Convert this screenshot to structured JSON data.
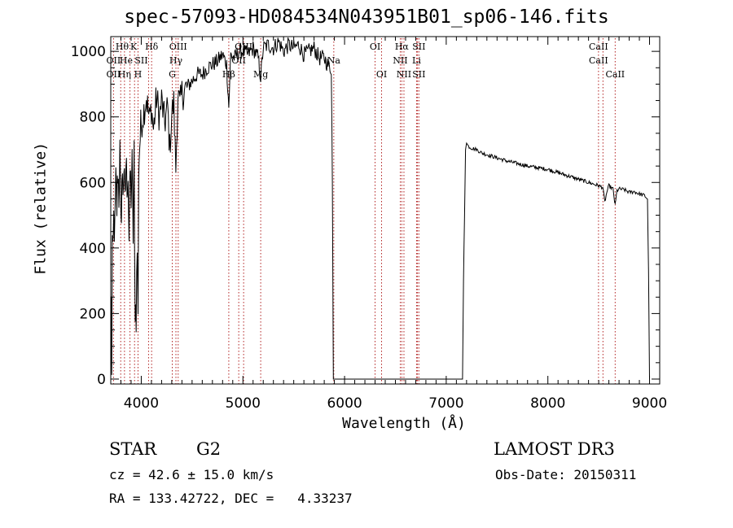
{
  "chart_data": {
    "type": "line",
    "title": "spec-57093-HD084534N043951B01_sp06-146.fits",
    "xlabel": "Wavelength (Å)",
    "ylabel": "Flux (relative)",
    "xlim": [
      3700,
      9100
    ],
    "ylim": [
      -15,
      1045
    ],
    "xticks": [
      4000,
      5000,
      6000,
      7000,
      8000,
      9000
    ],
    "yticks": [
      0,
      200,
      400,
      600,
      800,
      1000
    ],
    "grid": false,
    "series": [
      {
        "name": "spectrum",
        "x": [
          3700,
          3705,
          3710,
          3715,
          3720,
          3730,
          3740,
          3750,
          3760,
          3770,
          3780,
          3790,
          3800,
          3810,
          3820,
          3830,
          3840,
          3850,
          3860,
          3870,
          3880,
          3890,
          3900,
          3910,
          3920,
          3930,
          3934,
          3940,
          3950,
          3960,
          3968,
          3975,
          3985,
          4000,
          4020,
          4050,
          4080,
          4100,
          4120,
          4150,
          4180,
          4200,
          4230,
          4260,
          4280,
          4300,
          4320,
          4340,
          4360,
          4380,
          4400,
          4450,
          4500,
          4550,
          4600,
          4650,
          4700,
          4750,
          4800,
          4840,
          4861,
          4880,
          4920,
          4960,
          5000,
          5050,
          5100,
          5150,
          5175,
          5200,
          5250,
          5300,
          5350,
          5400,
          5450,
          5500,
          5550,
          5600,
          5650,
          5700,
          5750,
          5800,
          5850,
          5870,
          5880,
          5890,
          5900,
          7160,
          7170,
          7180,
          7190,
          7200,
          7220,
          7250,
          7300,
          7350,
          7400,
          7500,
          7600,
          7700,
          7800,
          7900,
          8000,
          8100,
          8200,
          8300,
          8400,
          8450,
          8500,
          8540,
          8560,
          8580,
          8600,
          8640,
          8662,
          8680,
          8700,
          8750,
          8800,
          8850,
          8900,
          8950,
          8980,
          8990,
          9000
        ],
        "values": [
          0,
          230,
          40,
          420,
          350,
          490,
          440,
          600,
          520,
          640,
          560,
          690,
          450,
          610,
          580,
          650,
          520,
          660,
          600,
          630,
          420,
          640,
          560,
          650,
          440,
          680,
          380,
          230,
          200,
          400,
          170,
          650,
          720,
          780,
          810,
          860,
          790,
          830,
          760,
          860,
          800,
          850,
          780,
          830,
          700,
          810,
          840,
          640,
          870,
          830,
          870,
          890,
          910,
          930,
          930,
          950,
          960,
          970,
          990,
          960,
          830,
          990,
          980,
          1000,
          1000,
          990,
          1010,
          980,
          920,
          1010,
          1020,
          1010,
          1030,
          1000,
          1020,
          1010,
          1020,
          990,
          1000,
          1010,
          980,
          980,
          950,
          950,
          600,
          0,
          0,
          0,
          300,
          500,
          700,
          720,
          710,
          705,
          700,
          690,
          685,
          675,
          665,
          658,
          650,
          645,
          640,
          630,
          620,
          610,
          600,
          595,
          590,
          585,
          540,
          570,
          590,
          580,
          530,
          575,
          580,
          578,
          570,
          572,
          565,
          560,
          550,
          330,
          0
        ]
      }
    ],
    "lines": [
      {
        "label": "OII",
        "x": 3727
      },
      {
        "label": "Hθ",
        "x": 3798
      },
      {
        "label": "Hη",
        "x": 3835
      },
      {
        "label": "HeI",
        "x": 3889
      },
      {
        "label": "K",
        "x": 3934
      },
      {
        "label": "H",
        "x": 3968
      },
      {
        "label": "SII",
        "x": 4072
      },
      {
        "label": "Hδ",
        "x": 4102
      },
      {
        "label": "G",
        "x": 4305
      },
      {
        "label": "Hγ",
        "x": 4341
      },
      {
        "label": "OIII",
        "x": 4363
      },
      {
        "label": "Hβ",
        "x": 4861
      },
      {
        "label": "OIII",
        "x": 4959
      },
      {
        "label": "OIII",
        "x": 5007
      },
      {
        "label": "Mg",
        "x": 5175
      },
      {
        "label": "Na",
        "x": 5894
      },
      {
        "label": "OI",
        "x": 6300
      },
      {
        "label": "OI",
        "x": 6364
      },
      {
        "label": "NII",
        "x": 6548
      },
      {
        "label": "Hα",
        "x": 6563
      },
      {
        "label": "NII",
        "x": 6584
      },
      {
        "label": "Li",
        "x": 6708
      },
      {
        "label": "SII",
        "x": 6717
      },
      {
        "label": "SII",
        "x": 6731
      },
      {
        "label": "CaII",
        "x": 8498
      },
      {
        "label": "CaII",
        "x": 8542
      },
      {
        "label": "CaII",
        "x": 8662
      }
    ],
    "labels": [
      {
        "text": "Hθ",
        "x": 3812,
        "row": 0
      },
      {
        "text": "OII",
        "x": 3727,
        "row": 1
      },
      {
        "text": "OII",
        "x": 3727,
        "row": 2
      },
      {
        "text": "K",
        "x": 3925,
        "row": 0
      },
      {
        "text": "He",
        "x": 3852,
        "row": 1
      },
      {
        "text": "Hη",
        "x": 3835,
        "row": 2
      },
      {
        "text": "SII",
        "x": 4000,
        "row": 1
      },
      {
        "text": "H",
        "x": 3968,
        "row": 2
      },
      {
        "text": "Hδ",
        "x": 4102,
        "row": 0
      },
      {
        "text": "OIII",
        "x": 4363,
        "row": 0
      },
      {
        "text": "Hγ",
        "x": 4341,
        "row": 1
      },
      {
        "text": "G",
        "x": 4305,
        "row": 2
      },
      {
        "text": "OIII",
        "x": 5007,
        "row": 0
      },
      {
        "text": "OII",
        "x": 4959,
        "row": 1
      },
      {
        "text": "Hβ",
        "x": 4861,
        "row": 2
      },
      {
        "text": "Mg",
        "x": 5175,
        "row": 2
      },
      {
        "text": "Na",
        "x": 5894,
        "row": 1
      },
      {
        "text": "OI",
        "x": 6300,
        "row": 0
      },
      {
        "text": "OI",
        "x": 6364,
        "row": 2
      },
      {
        "text": "Hα",
        "x": 6563,
        "row": 0
      },
      {
        "text": "SII",
        "x": 6731,
        "row": 0
      },
      {
        "text": "NII",
        "x": 6548,
        "row": 1
      },
      {
        "text": "Li",
        "x": 6708,
        "row": 1
      },
      {
        "text": "NII",
        "x": 6584,
        "row": 2
      },
      {
        "text": "SII",
        "x": 6731,
        "row": 2
      },
      {
        "text": "CaII",
        "x": 8498,
        "row": 0
      },
      {
        "text": "CaII",
        "x": 8498,
        "row": 1
      },
      {
        "text": "CaII",
        "x": 8662,
        "row": 2
      }
    ]
  },
  "info": {
    "object_class": "STAR",
    "subclass": "G2",
    "survey": "LAMOST DR3",
    "cz": "cz = 42.6 ± 15.0 km/s",
    "obs_date": "Obs-Date: 20150311",
    "radec": "RA = 133.42722, DEC =   4.33237"
  },
  "colors": {
    "spectrum": "#000000",
    "line_marker": "#b22222",
    "axis": "#000000",
    "background": "#ffffff"
  }
}
